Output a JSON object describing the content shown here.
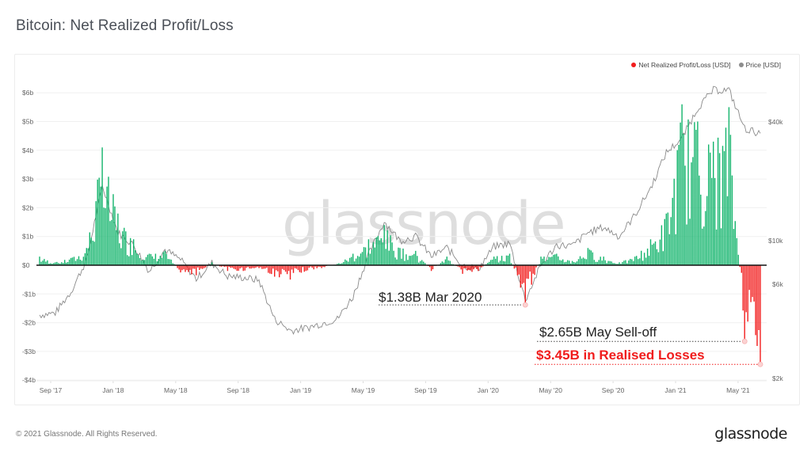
{
  "header": {
    "title": "Bitcoin: Net Realized Profit/Loss"
  },
  "legend": [
    {
      "label": "Net Realized Profit/Loss [USD]",
      "color": "#f21d1d"
    },
    {
      "label": "Price [USD]",
      "color": "#8c8c8c"
    }
  ],
  "watermark": "glassnode",
  "annotations": [
    {
      "text": "$1.38B Mar 2020"
    },
    {
      "text": "$2.65B May Sell-off"
    },
    {
      "text": "$3.45B in Realised Losses"
    }
  ],
  "footer": {
    "copyright": "© 2021 Glassnode. All Rights Reserved.",
    "logo": "glassnode"
  },
  "colors": {
    "profit": "#13b46c",
    "loss": "#f21d1d",
    "price": "#8a8a8a",
    "zero_line": "#111111",
    "grid": "#f0f0f0"
  },
  "chart_data": {
    "type": "line",
    "title": "Bitcoin: Net Realized Profit/Loss",
    "xlabel": "",
    "ylabel": "Net Realized Profit/Loss [USD]",
    "y2label": "Price [USD]",
    "ylim": [
      -4,
      6.3
    ],
    "y_unit": "billion USD",
    "y_ticks": [
      "$6b",
      "$5b",
      "$4b",
      "$3b",
      "$2b",
      "$1b",
      "$0",
      "-$1b",
      "-$2b",
      "-$3b",
      "-$4b"
    ],
    "y2_scale": "log",
    "y2_ticks": [
      "$40k",
      "$10k",
      "$6k",
      "$2k"
    ],
    "x_ticks": [
      "Sep '17",
      "Jan '18",
      "May '18",
      "Sep '18",
      "Jan '19",
      "May '19",
      "Sep '19",
      "Jan '20",
      "May '20",
      "Sep '20",
      "Jan '21",
      "May '21"
    ],
    "grid": true,
    "legend_position": "top-right",
    "x": [
      "2017-08",
      "2017-09",
      "2017-10",
      "2017-11",
      "2017-12",
      "2018-01",
      "2018-02",
      "2018-03",
      "2018-04",
      "2018-05",
      "2018-06",
      "2018-07",
      "2018-08",
      "2018-09",
      "2018-10",
      "2018-11",
      "2018-12",
      "2019-01",
      "2019-02",
      "2019-03",
      "2019-04",
      "2019-05",
      "2019-06",
      "2019-07",
      "2019-08",
      "2019-09",
      "2019-10",
      "2019-11",
      "2019-12",
      "2020-01",
      "2020-02",
      "2020-03",
      "2020-04",
      "2020-05",
      "2020-06",
      "2020-07",
      "2020-08",
      "2020-09",
      "2020-10",
      "2020-11",
      "2020-12",
      "2021-01",
      "2021-02",
      "2021-03",
      "2021-04",
      "2021-05",
      "2021-06"
    ],
    "series": [
      {
        "name": "Net Realized Profit/Loss [USD] (billions, monthly peak approx.)",
        "values": [
          0.3,
          0.1,
          0.25,
          0.6,
          4.1,
          1.8,
          0.9,
          0.4,
          0.5,
          -0.25,
          -0.35,
          0.1,
          -0.2,
          -0.2,
          -0.1,
          -0.4,
          -0.5,
          -0.2,
          -0.1,
          0.05,
          0.4,
          0.9,
          1.4,
          0.6,
          0.5,
          -0.2,
          0.3,
          -0.3,
          -0.2,
          0.3,
          0.4,
          -1.38,
          0.3,
          0.4,
          0.15,
          0.6,
          0.3,
          0.1,
          0.3,
          0.9,
          1.8,
          5.6,
          5.0,
          4.3,
          5.5,
          -2.65,
          -3.45
        ]
      },
      {
        "name": "Price [USD]",
        "values": [
          4200,
          4300,
          5500,
          8000,
          19000,
          11000,
          9500,
          7000,
          9000,
          8000,
          6400,
          7700,
          6600,
          6500,
          6300,
          4000,
          3500,
          3600,
          3800,
          4000,
          5200,
          8500,
          12500,
          10000,
          10500,
          8300,
          9200,
          7500,
          7200,
          9300,
          9700,
          5000,
          7500,
          9500,
          9400,
          11000,
          11700,
          10500,
          13500,
          18500,
          28000,
          33000,
          47000,
          58000,
          58000,
          37000,
          35000
        ]
      }
    ],
    "annotations": [
      {
        "text": "$1.38B Mar 2020",
        "x": "2020-03",
        "y": -1.38
      },
      {
        "text": "$2.65B May Sell-off",
        "x": "2021-05",
        "y": -2.65
      },
      {
        "text": "$3.45B in Realised Losses",
        "x": "2021-06",
        "y": -3.45
      }
    ]
  }
}
